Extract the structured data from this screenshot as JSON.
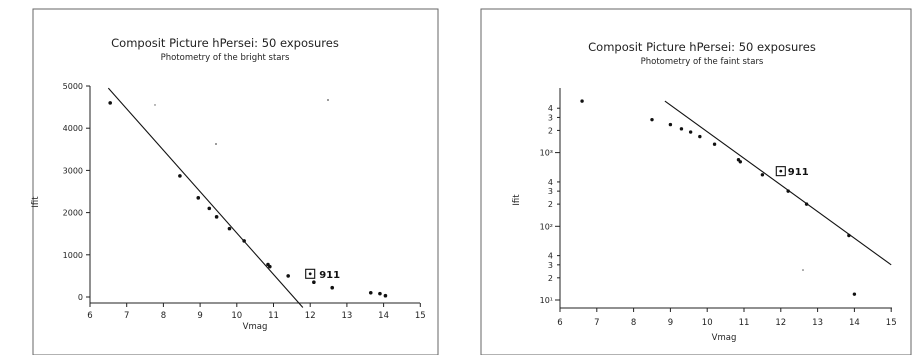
{
  "chart_data": [
    {
      "type": "scatter",
      "title": "Composit Picture hPersei: 50 exposures",
      "subtitle": "Photometry of the bright stars",
      "xlabel": "Vmag",
      "ylabel": "Ifit",
      "xlim": [
        6,
        15
      ],
      "ylim": [
        -300,
        5000
      ],
      "xticks": [
        "6",
        "7",
        "8",
        "9",
        "10",
        "11",
        "12",
        "13",
        "14",
        "15"
      ],
      "yticks": [
        "0",
        "1000",
        "2000",
        "3000",
        "4000",
        "5000"
      ],
      "points": [
        [
          6.55,
          4600
        ],
        [
          8.45,
          2870
        ],
        [
          8.95,
          2350
        ],
        [
          9.25,
          2100
        ],
        [
          9.45,
          1900
        ],
        [
          9.8,
          1620
        ],
        [
          10.2,
          1330
        ],
        [
          10.85,
          770
        ],
        [
          10.9,
          720
        ],
        [
          11.4,
          500
        ],
        [
          12.1,
          350
        ],
        [
          12.6,
          220
        ],
        [
          13.65,
          100
        ],
        [
          13.9,
          80
        ],
        [
          14.05,
          30
        ]
      ],
      "fit_line": [
        [
          6.5,
          4950
        ],
        [
          11.8,
          -250
        ]
      ],
      "annotation": {
        "label": "911",
        "x": 12,
        "y": 550
      }
    },
    {
      "type": "scatter",
      "title": "Composit Picture hPersei: 50 exposures",
      "subtitle": "Photometry of the faint stars",
      "xlabel": "Vmag",
      "ylabel": "Ifit",
      "yscale": "log",
      "xlim": [
        6,
        15
      ],
      "xticks": [
        "6",
        "7",
        "8",
        "9",
        "10",
        "11",
        "12",
        "13",
        "14",
        "15"
      ],
      "ytick_labels": [
        "4",
        "3",
        "2",
        "10³",
        "4",
        "3",
        "2",
        "10²",
        "4",
        "3",
        "2",
        "10¹"
      ],
      "points": [
        [
          6.6,
          5000
        ],
        [
          8.5,
          2800
        ],
        [
          9.0,
          2400
        ],
        [
          9.3,
          2100
        ],
        [
          9.55,
          1900
        ],
        [
          9.8,
          1650
        ],
        [
          10.2,
          1300
        ],
        [
          10.85,
          800
        ],
        [
          10.9,
          750
        ],
        [
          11.5,
          500
        ],
        [
          12.2,
          300
        ],
        [
          12.7,
          200
        ],
        [
          13.85,
          75
        ],
        [
          14.0,
          12
        ]
      ],
      "fit_line": [
        [
          8.85,
          5000
        ],
        [
          15,
          30
        ]
      ],
      "annotation": {
        "label": "911",
        "x": 12,
        "y": 560
      }
    }
  ]
}
